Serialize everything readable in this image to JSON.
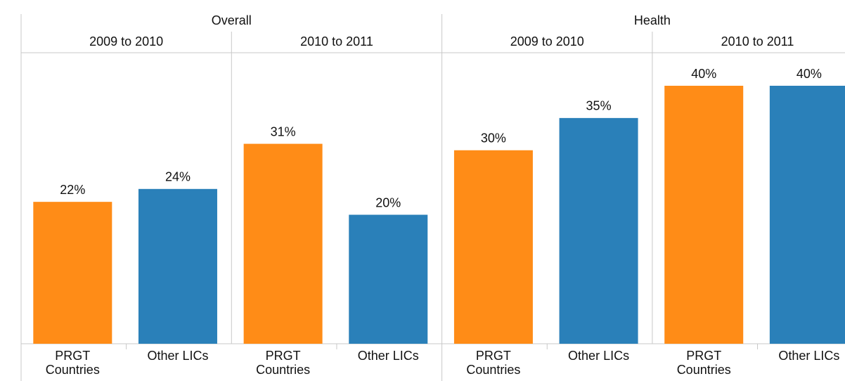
{
  "chart_data": {
    "type": "bar",
    "categories": [
      "PRGT Countries",
      "Other LICs"
    ],
    "colors": [
      "#ff8c17",
      "#2a80b9"
    ],
    "groups": [
      {
        "name": "Overall",
        "periods": [
          {
            "name": "2009 to 2010",
            "values": [
              22,
              24
            ],
            "value_labels": [
              "22%",
              "24%"
            ]
          },
          {
            "name": "2010 to 2011",
            "values": [
              31,
              20
            ],
            "value_labels": [
              "31%",
              "20%"
            ]
          }
        ]
      },
      {
        "name": "Health",
        "periods": [
          {
            "name": "2009 to 2010",
            "values": [
              30,
              35
            ],
            "value_labels": [
              "30%",
              "35%"
            ]
          },
          {
            "name": "2010 to 2011",
            "values": [
              40,
              40
            ],
            "value_labels": [
              "40%",
              "40%"
            ]
          }
        ]
      }
    ]
  }
}
